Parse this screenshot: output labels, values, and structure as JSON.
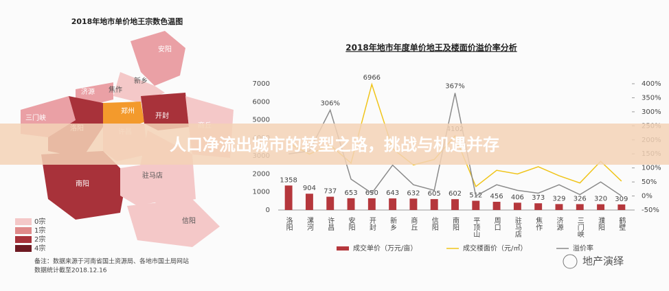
{
  "banner": "人口净流出城市的转型之路，挑战与机遇并存",
  "watermark": "地产演绎",
  "map": {
    "title": "2018年地市单价地王宗数色温图",
    "cities": [
      "安阳",
      "新乡",
      "焦作",
      "济源",
      "郑州",
      "开封",
      "三门峡",
      "洛阳",
      "商丘",
      "许昌",
      "南阳",
      "驻马店",
      "信阳"
    ],
    "legend": [
      "0宗",
      "1宗",
      "2宗",
      "4宗"
    ],
    "note": [
      "备注：数据来源于河南省国土资源局、各地市国土局网站",
      "数据统计截至2018.12.16"
    ]
  },
  "chart_data": {
    "type": "combo",
    "title": "2018年地市年度单价地王及楼面价溢价率分析",
    "categories": [
      "洛阳",
      "漯河",
      "许昌",
      "安阳",
      "开封",
      "新乡",
      "商丘",
      "信阳",
      "南阳",
      "平顶山",
      "周口",
      "驻马店",
      "焦作",
      "济源",
      "三门峡",
      "濮阳",
      "鹤壁"
    ],
    "series": [
      {
        "name": "成交单价（万元/亩）",
        "type": "bar",
        "color": "#b5373c",
        "values": [
          1358,
          904,
          737,
          653,
          650,
          643,
          632,
          605,
          602,
          512,
          456,
          406,
          373,
          329,
          326,
          320,
          309
        ]
      },
      {
        "name": "成交楼面价（元/㎡）",
        "type": "line",
        "color": "#f0c419",
        "values": [
          3700,
          3100,
          3600,
          2600,
          6966,
          3400,
          2500,
          2800,
          4102,
          1300,
          2200,
          2000,
          2400,
          1900,
          1500,
          2700,
          1600
        ],
        "value_labels": [
          null,
          null,
          null,
          null,
          "6966",
          null,
          null,
          null,
          "4102",
          null,
          null,
          null,
          null,
          null,
          null,
          null,
          null
        ]
      },
      {
        "name": "溢价率",
        "type": "line",
        "axis": "y2",
        "color": "#8a8a8a",
        "values": [
          150,
          160,
          306,
          60,
          10,
          110,
          40,
          20,
          367,
          0,
          40,
          20,
          10,
          40,
          5,
          50,
          0
        ],
        "value_labels": [
          null,
          null,
          "306%",
          null,
          null,
          null,
          null,
          null,
          "367%",
          null,
          null,
          null,
          null,
          null,
          null,
          null,
          null
        ]
      }
    ],
    "ylim": [
      0,
      7000
    ],
    "yticks": [
      0,
      1000,
      2000,
      3000,
      4000,
      5000,
      6000,
      7000
    ],
    "y2lim": [
      -50,
      400
    ],
    "y2ticks": [
      {
        "value": -50,
        "label": "-50%"
      },
      {
        "value": 0,
        "label": "0%"
      },
      {
        "value": 50,
        "label": "50%"
      },
      {
        "value": 100,
        "label": "100%"
      },
      {
        "value": 150,
        "label": "150%"
      },
      {
        "value": 200,
        "label": "200%"
      },
      {
        "value": 250,
        "label": "250%"
      },
      {
        "value": 300,
        "label": "300%"
      },
      {
        "value": 350,
        "label": "350%"
      },
      {
        "value": 400,
        "label": "400%"
      }
    ]
  }
}
